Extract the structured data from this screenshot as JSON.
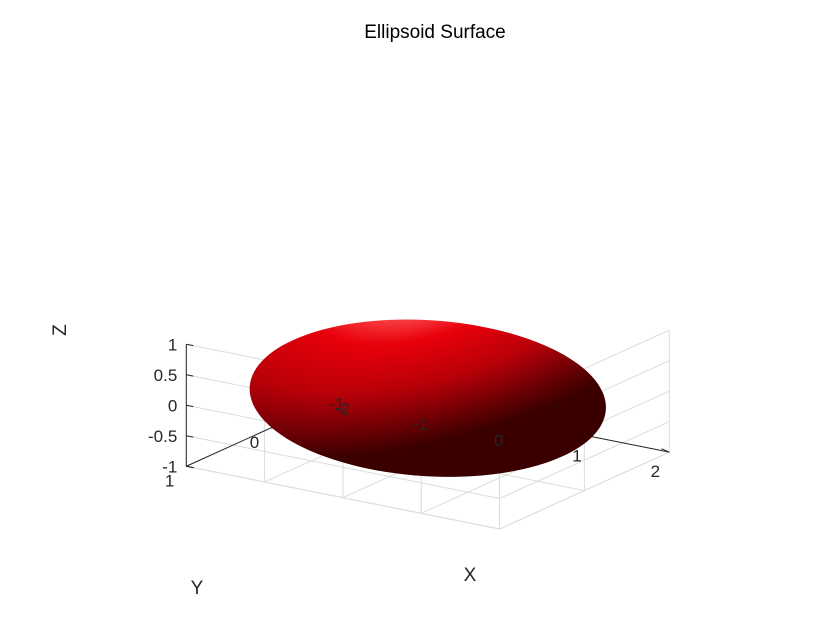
{
  "chart_data": {
    "type": "surface",
    "title": "Ellipsoid Surface",
    "xlabel": "X",
    "ylabel": "Y",
    "zlabel": "Z",
    "xlim": [
      -2,
      2
    ],
    "ylim": [
      -1,
      1
    ],
    "zlim": [
      -1,
      1
    ],
    "xticks": [
      -2,
      -1,
      0,
      1,
      2
    ],
    "yticks": [
      -1,
      0,
      1
    ],
    "zticks": [
      -1,
      -0.5,
      0,
      0.5,
      1
    ],
    "xtick_labels": [
      "-2",
      "-1",
      "0",
      "1",
      "2"
    ],
    "ytick_labels": [
      "-1",
      "0",
      "1"
    ],
    "ztick_labels": [
      "-1",
      "-0.5",
      "0",
      "0.5",
      "1"
    ],
    "surface": {
      "shape": "ellipsoid",
      "center": [
        0,
        0,
        0
      ],
      "radii": [
        2,
        1,
        1
      ],
      "color": "#e8000b",
      "shading": "lit"
    },
    "grid": true,
    "box": false
  }
}
